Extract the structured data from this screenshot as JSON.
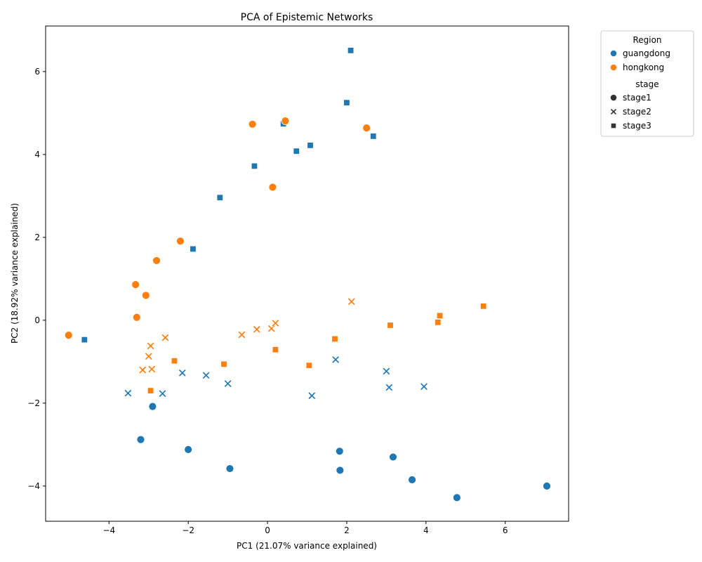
{
  "chart_data": {
    "type": "scatter",
    "title": "PCA of Epistemic Networks",
    "xlabel": "PC1 (21.07% variance explained)",
    "ylabel": "PC2 (18.92% variance explained)",
    "xlim": [
      -5.6,
      7.6
    ],
    "ylim": [
      -4.85,
      7.1
    ],
    "xticks": [
      -4,
      -2,
      0,
      2,
      4,
      6
    ],
    "yticks": [
      -4,
      -2,
      0,
      2,
      4,
      6
    ],
    "grid": false,
    "legend": {
      "placement": "outside-top-right",
      "hue_title": "Region",
      "hue_entries": [
        {
          "name": "guangdong",
          "color": "#1f77b4"
        },
        {
          "name": "hongkong",
          "color": "#ff7f0e"
        }
      ],
      "style_title": "stage",
      "style_entries": [
        {
          "name": "stage1",
          "marker": "circle"
        },
        {
          "name": "stage2",
          "marker": "x"
        },
        {
          "name": "stage3",
          "marker": "square"
        }
      ]
    },
    "series": [
      {
        "region": "guangdong",
        "stage": "stage1",
        "color": "#1f77b4",
        "marker": "circle",
        "points": [
          [
            -2.9,
            -2.08
          ],
          [
            -3.2,
            -2.88
          ],
          [
            -2.0,
            -3.12
          ],
          [
            -0.95,
            -3.58
          ],
          [
            1.82,
            -3.16
          ],
          [
            1.83,
            -3.62
          ],
          [
            3.17,
            -3.3
          ],
          [
            3.65,
            -3.85
          ],
          [
            4.78,
            -4.28
          ],
          [
            7.05,
            -4.0
          ]
        ]
      },
      {
        "region": "guangdong",
        "stage": "stage2",
        "color": "#1f77b4",
        "marker": "x",
        "points": [
          [
            -3.52,
            -1.76
          ],
          [
            -2.65,
            -1.77
          ],
          [
            -2.15,
            -1.27
          ],
          [
            -1.55,
            -1.33
          ],
          [
            -1.0,
            -1.53
          ],
          [
            1.12,
            -1.82
          ],
          [
            1.72,
            -0.95
          ],
          [
            3.0,
            -1.23
          ],
          [
            3.07,
            -1.62
          ],
          [
            3.95,
            -1.6
          ]
        ]
      },
      {
        "region": "guangdong",
        "stage": "stage3",
        "color": "#1f77b4",
        "marker": "square",
        "points": [
          [
            -4.62,
            -0.47
          ],
          [
            -1.88,
            1.72
          ],
          [
            -1.2,
            2.96
          ],
          [
            -0.33,
            3.72
          ],
          [
            0.4,
            4.74
          ],
          [
            0.73,
            4.08
          ],
          [
            1.08,
            4.22
          ],
          [
            2.0,
            5.25
          ],
          [
            2.1,
            6.51
          ],
          [
            2.67,
            4.44
          ]
        ]
      },
      {
        "region": "hongkong",
        "stage": "stage1",
        "color": "#ff7f0e",
        "marker": "circle",
        "points": [
          [
            -5.02,
            -0.36
          ],
          [
            -3.3,
            0.07
          ],
          [
            -3.33,
            0.86
          ],
          [
            -3.07,
            0.6
          ],
          [
            -2.8,
            1.44
          ],
          [
            -2.2,
            1.91
          ],
          [
            -0.38,
            4.73
          ],
          [
            0.13,
            3.21
          ],
          [
            0.45,
            4.81
          ],
          [
            2.5,
            4.64
          ]
        ]
      },
      {
        "region": "hongkong",
        "stage": "stage2",
        "color": "#ff7f0e",
        "marker": "x",
        "points": [
          [
            -3.15,
            -1.2
          ],
          [
            -2.92,
            -1.18
          ],
          [
            -3.0,
            -0.87
          ],
          [
            -2.95,
            -0.62
          ],
          [
            -2.58,
            -0.42
          ],
          [
            -0.65,
            -0.35
          ],
          [
            -0.27,
            -0.22
          ],
          [
            0.1,
            -0.2
          ],
          [
            0.2,
            -0.07
          ],
          [
            2.12,
            0.45
          ]
        ]
      },
      {
        "region": "hongkong",
        "stage": "stage3",
        "color": "#ff7f0e",
        "marker": "square",
        "points": [
          [
            -2.95,
            -1.7
          ],
          [
            -2.35,
            -0.98
          ],
          [
            -1.1,
            -1.06
          ],
          [
            0.2,
            -0.71
          ],
          [
            1.05,
            -1.09
          ],
          [
            1.7,
            -0.45
          ],
          [
            3.1,
            -0.12
          ],
          [
            4.3,
            -0.05
          ],
          [
            4.35,
            0.11
          ],
          [
            5.45,
            0.34
          ]
        ]
      }
    ]
  }
}
